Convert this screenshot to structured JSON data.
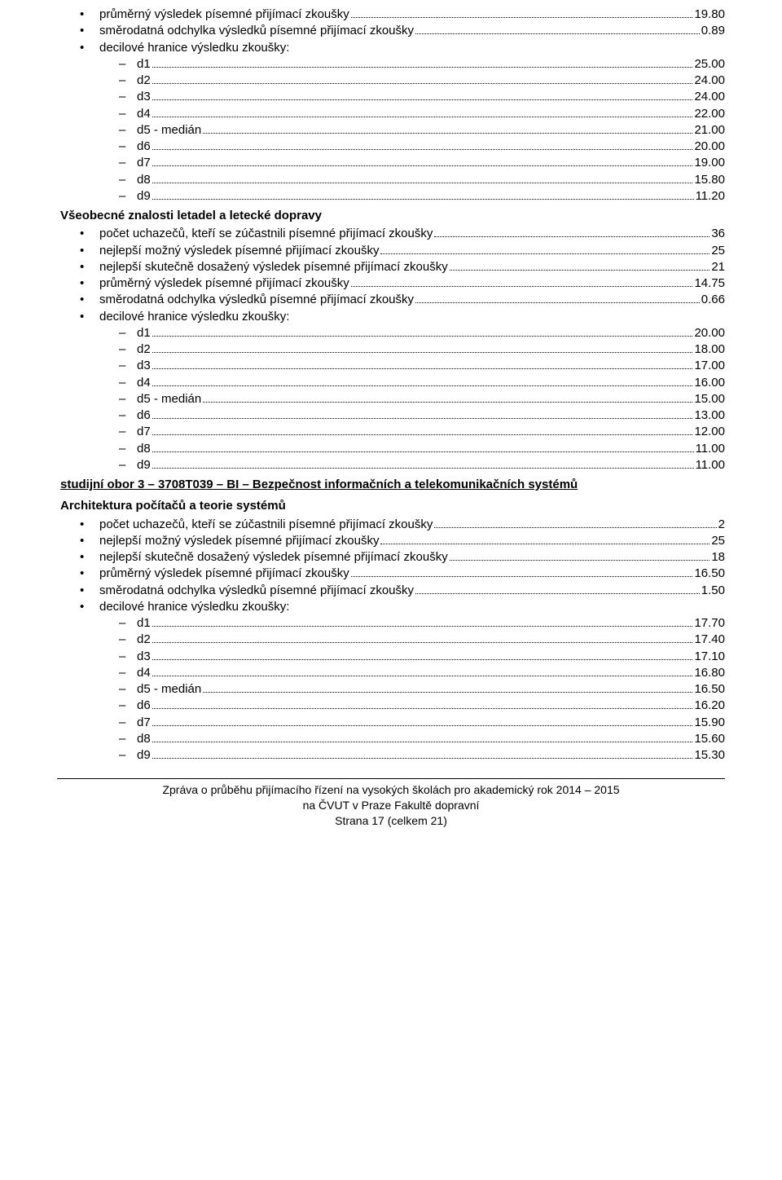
{
  "block1": {
    "items": [
      {
        "label": "průměrný výsledek písemné přijímací zkoušky",
        "value": "19.80"
      },
      {
        "label": "směrodatná odchylka výsledků písemné přijímací zkoušky",
        "value": "0.89"
      }
    ],
    "decile_label": "decilové hranice výsledku zkoušky:",
    "deciles": [
      {
        "label": "d1",
        "value": "25.00"
      },
      {
        "label": "d2",
        "value": "24.00"
      },
      {
        "label": "d3",
        "value": "24.00"
      },
      {
        "label": "d4",
        "value": "22.00"
      },
      {
        "label": "d5 - medián",
        "value": "21.00"
      },
      {
        "label": "d6",
        "value": "20.00"
      },
      {
        "label": "d7",
        "value": "19.00"
      },
      {
        "label": "d8",
        "value": "15.80"
      },
      {
        "label": "d9",
        "value": "11.20"
      }
    ]
  },
  "section2": {
    "title": "Všeobecné znalosti letadel a letecké dopravy",
    "items": [
      {
        "label": "počet uchazečů, kteří se zúčastnili písemné přijímací zkoušky",
        "value": "36"
      },
      {
        "label": "nejlepší možný výsledek písemné přijímací zkoušky",
        "value": "25"
      },
      {
        "label": "nejlepší skutečně dosažený výsledek písemné přijímací zkoušky",
        "value": "21"
      },
      {
        "label": "průměrný výsledek písemné přijímací zkoušky",
        "value": "14.75"
      },
      {
        "label": "směrodatná odchylka výsledků písemné přijímací zkoušky",
        "value": "0.66"
      }
    ],
    "decile_label": "decilové hranice výsledku zkoušky:",
    "deciles": [
      {
        "label": "d1",
        "value": "20.00"
      },
      {
        "label": "d2",
        "value": "18.00"
      },
      {
        "label": "d3",
        "value": "17.00"
      },
      {
        "label": "d4",
        "value": "16.00"
      },
      {
        "label": "d5 - medián",
        "value": "15.00"
      },
      {
        "label": "d6",
        "value": "13.00"
      },
      {
        "label": "d7",
        "value": "12.00"
      },
      {
        "label": "d8",
        "value": "11.00"
      },
      {
        "label": "d9",
        "value": "11.00"
      }
    ]
  },
  "study3": {
    "heading": "studijní obor 3 – 3708T039 – BI – Bezpečnost informačních a telekomunikačních systémů",
    "subtitle": "Architektura počítačů a teorie systémů",
    "items": [
      {
        "label": "počet uchazečů, kteří se zúčastnili písemné přijímací zkoušky",
        "value": "2"
      },
      {
        "label": "nejlepší možný výsledek písemné přijímací zkoušky",
        "value": "25"
      },
      {
        "label": "nejlepší skutečně dosažený výsledek písemné přijímací zkoušky",
        "value": "18"
      },
      {
        "label": "průměrný výsledek písemné přijímací zkoušky",
        "value": "16.50"
      },
      {
        "label": "směrodatná odchylka výsledků písemné přijímací zkoušky",
        "value": "1.50"
      }
    ],
    "decile_label": "decilové hranice výsledku zkoušky:",
    "deciles": [
      {
        "label": "d1",
        "value": "17.70"
      },
      {
        "label": "d2",
        "value": "17.40"
      },
      {
        "label": "d3",
        "value": "17.10"
      },
      {
        "label": "d4",
        "value": "16.80"
      },
      {
        "label": "d5 - medián",
        "value": "16.50"
      },
      {
        "label": "d6",
        "value": "16.20"
      },
      {
        "label": "d7",
        "value": "15.90"
      },
      {
        "label": "d8",
        "value": "15.60"
      },
      {
        "label": "d9",
        "value": "15.30"
      }
    ]
  },
  "footer": {
    "line1": "Zpráva o průběhu přijímacího řízení na vysokých školách pro akademický rok 2014 – 2015",
    "line2": "na ČVUT v Praze Fakultě dopravní",
    "line3": "Strana 17 (celkem 21)"
  }
}
